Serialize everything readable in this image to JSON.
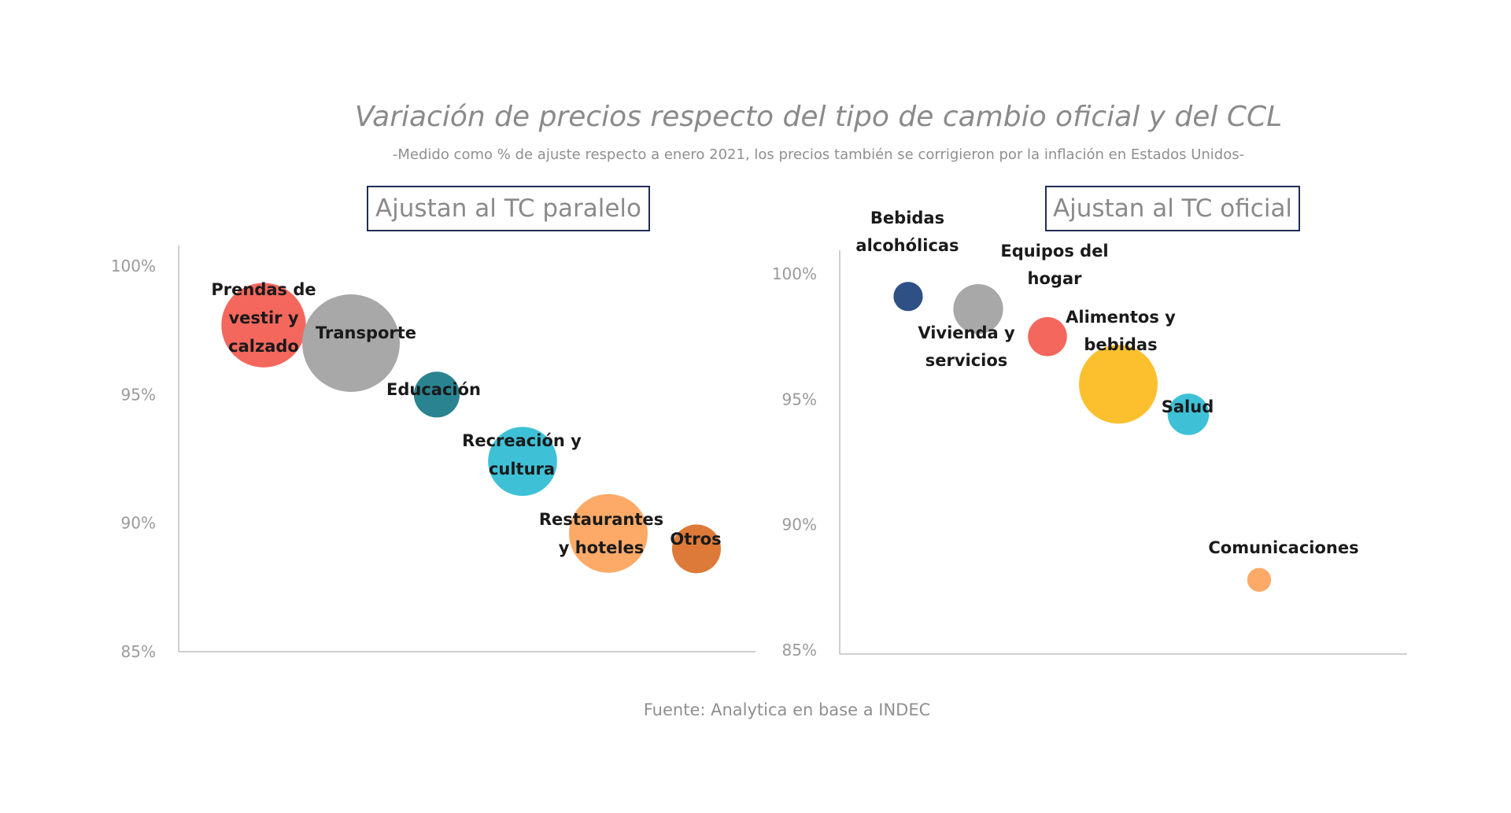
{
  "header": {
    "title": "Variación de precios respecto del tipo de cambio oficial y del CCL",
    "subtitle": "-Medido como % de ajuste respecto a enero 2021, los precios también se corrigieron por la inflación en Estados Unidos-"
  },
  "footer": {
    "source": "Fuente: Analytica en base a INDEC"
  },
  "chart_data": [
    {
      "type": "bubble",
      "title": "Ajustan al TC paralelo",
      "ylim": [
        85,
        100
      ],
      "yticks": [
        "100%",
        "95%",
        "90%",
        "85%"
      ],
      "xlabel": "",
      "ylabel": "",
      "points": [
        {
          "label": [
            "Prendas de",
            "vestir y",
            "calzado"
          ],
          "x": 1,
          "y": 97.7,
          "size": 0.75,
          "color": "#f4675d"
        },
        {
          "label": [
            "Transporte"
          ],
          "x": 2,
          "y": 97.0,
          "size": 1.0,
          "color": "#a8a8a8"
        },
        {
          "label": [
            "Educación"
          ],
          "x": 3,
          "y": 95.0,
          "size": 0.22,
          "color": "#2a8391"
        },
        {
          "label": [
            "Recreación y",
            "cultura"
          ],
          "x": 4,
          "y": 92.4,
          "size": 0.5,
          "color": "#3ec1d7"
        },
        {
          "label": [
            "Restaurantes",
            "y hoteles"
          ],
          "x": 5,
          "y": 89.6,
          "size": 0.65,
          "color": "#fdaa68"
        },
        {
          "label": [
            "Otros"
          ],
          "x": 6,
          "y": 89.0,
          "size": 0.25,
          "color": "#de7a39"
        }
      ]
    },
    {
      "type": "bubble",
      "title": "Ajustan al TC oficial",
      "ylim": [
        85,
        100
      ],
      "yticks": [
        "100%",
        "95%",
        "90%",
        "85%"
      ],
      "xlabel": "",
      "ylabel": "",
      "points": [
        {
          "label": [
            "Bebidas",
            "alcohólicas"
          ],
          "x": 1,
          "y": 99.1,
          "size": 0.09,
          "color": "#2f5085"
        },
        {
          "label": [
            "Vivienda y",
            "servicios"
          ],
          "x": 2,
          "y": 98.6,
          "size": 0.26,
          "color": "#a8a8a8"
        },
        {
          "label": [
            "Equipos del",
            "hogar"
          ],
          "x": 3,
          "y": 97.5,
          "size": 0.16,
          "color": "#f4675d"
        },
        {
          "label": [
            "Alimentos y",
            "bebidas"
          ],
          "x": 4,
          "y": 95.6,
          "size": 0.65,
          "color": "#fcc02e"
        },
        {
          "label": [
            "Salud"
          ],
          "x": 5,
          "y": 94.4,
          "size": 0.18,
          "color": "#3ec1d7"
        },
        {
          "label": [
            "Comunicaciones"
          ],
          "x": 6,
          "y": 87.8,
          "size": 0.06,
          "color": "#fdaa68"
        }
      ]
    }
  ]
}
